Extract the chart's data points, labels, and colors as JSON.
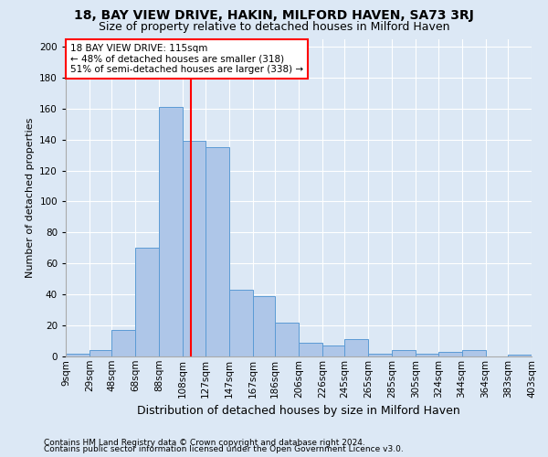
{
  "title": "18, BAY VIEW DRIVE, HAKIN, MILFORD HAVEN, SA73 3RJ",
  "subtitle": "Size of property relative to detached houses in Milford Haven",
  "xlabel": "Distribution of detached houses by size in Milford Haven",
  "ylabel": "Number of detached properties",
  "footnote1": "Contains HM Land Registry data © Crown copyright and database right 2024.",
  "footnote2": "Contains public sector information licensed under the Open Government Licence v3.0.",
  "property_label": "18 BAY VIEW DRIVE: 115sqm",
  "annotation_line1": "← 48% of detached houses are smaller (318)",
  "annotation_line2": "51% of semi-detached houses are larger (338) →",
  "bin_edges": [
    9,
    29,
    48,
    68,
    88,
    108,
    127,
    147,
    167,
    186,
    206,
    226,
    245,
    265,
    285,
    305,
    324,
    344,
    364,
    383,
    403
  ],
  "bin_labels": [
    "9sqm",
    "29sqm",
    "48sqm",
    "68sqm",
    "88sqm",
    "108sqm",
    "127sqm",
    "147sqm",
    "167sqm",
    "186sqm",
    "206sqm",
    "226sqm",
    "245sqm",
    "265sqm",
    "285sqm",
    "305sqm",
    "324sqm",
    "344sqm",
    "364sqm",
    "383sqm",
    "403sqm"
  ],
  "bar_heights": [
    2,
    4,
    17,
    70,
    161,
    139,
    135,
    43,
    39,
    22,
    9,
    7,
    11,
    2,
    4,
    2,
    3,
    4,
    0,
    1
  ],
  "bar_color": "#aec6e8",
  "bar_edgecolor": "#5b9bd5",
  "vline_x": 115,
  "vline_color": "red",
  "ylim": [
    0,
    205
  ],
  "yticks": [
    0,
    20,
    40,
    60,
    80,
    100,
    120,
    140,
    160,
    180,
    200
  ],
  "bg_color": "#dce8f5",
  "grid_color": "#ffffff",
  "annotation_box_color": "white",
  "annotation_box_edgecolor": "red",
  "title_fontsize": 10,
  "subtitle_fontsize": 9,
  "ylabel_fontsize": 8,
  "xlabel_fontsize": 9,
  "tick_fontsize": 7.5,
  "footnote_fontsize": 6.5
}
